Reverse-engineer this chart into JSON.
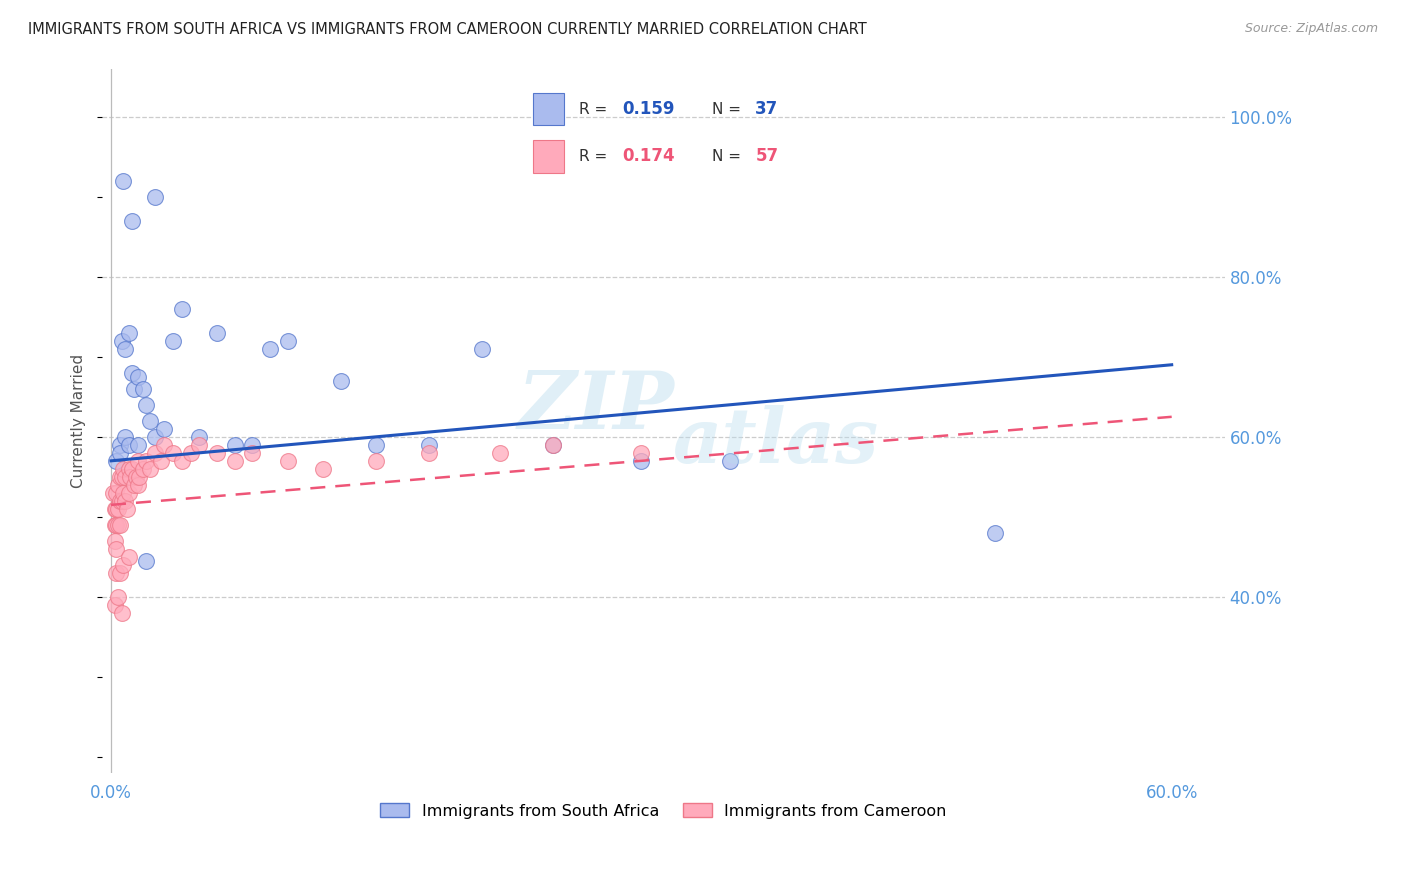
{
  "title": "IMMIGRANTS FROM SOUTH AFRICA VS IMMIGRANTS FROM CAMEROON CURRENTLY MARRIED CORRELATION CHART",
  "source": "Source: ZipAtlas.com",
  "ylabel": "Currently Married",
  "legend_r1": "R = 0.159",
  "legend_n1": "N = 37",
  "legend_r2": "R = 0.174",
  "legend_n2": "N = 57",
  "color_blue_fill": "#AABBEE",
  "color_blue_edge": "#5577CC",
  "color_pink_fill": "#FFAABB",
  "color_pink_edge": "#EE7788",
  "color_blue_line": "#2255BB",
  "color_pink_line": "#EE5577",
  "color_tick_label": "#5599DD",
  "color_grid": "#CCCCCC",
  "color_ylabel": "#555555",
  "color_title": "#222222",
  "color_source": "#999999",
  "color_watermark": "#BBDDEE",
  "xlim_min": -0.005,
  "xlim_max": 0.63,
  "ylim_min": 0.18,
  "ylim_max": 1.06,
  "x_ticks": [
    0.0,
    0.1,
    0.2,
    0.3,
    0.4,
    0.5,
    0.6
  ],
  "x_tick_labels": [
    "0.0%",
    "",
    "",
    "",
    "",
    "",
    "60.0%"
  ],
  "y_ticks_right": [
    0.4,
    0.6,
    0.8,
    1.0
  ],
  "y_tick_labels_right": [
    "40.0%",
    "60.0%",
    "80.0%",
    "100.0%"
  ],
  "sa_line_y0": 0.57,
  "sa_line_y1": 0.69,
  "cam_line_y0": 0.515,
  "cam_line_y1": 0.625,
  "sa_x": [
    0.003,
    0.005,
    0.006,
    0.008,
    0.01,
    0.012,
    0.013,
    0.015,
    0.018,
    0.02,
    0.022,
    0.025,
    0.03,
    0.035,
    0.04,
    0.05,
    0.06,
    0.07,
    0.08,
    0.09,
    0.1,
    0.13,
    0.15,
    0.18,
    0.21,
    0.25,
    0.3,
    0.35,
    0.5,
    0.005,
    0.008,
    0.01,
    0.015,
    0.02,
    0.025,
    0.007,
    0.012
  ],
  "sa_y": [
    0.57,
    0.59,
    0.72,
    0.71,
    0.73,
    0.68,
    0.66,
    0.675,
    0.66,
    0.64,
    0.62,
    0.6,
    0.61,
    0.72,
    0.76,
    0.6,
    0.73,
    0.59,
    0.59,
    0.71,
    0.72,
    0.67,
    0.59,
    0.59,
    0.71,
    0.59,
    0.57,
    0.57,
    0.48,
    0.58,
    0.6,
    0.59,
    0.59,
    0.445,
    0.9,
    0.92,
    0.87
  ],
  "cam_x": [
    0.001,
    0.002,
    0.002,
    0.002,
    0.003,
    0.003,
    0.003,
    0.003,
    0.004,
    0.004,
    0.004,
    0.005,
    0.005,
    0.005,
    0.006,
    0.006,
    0.007,
    0.007,
    0.008,
    0.008,
    0.009,
    0.01,
    0.01,
    0.011,
    0.012,
    0.013,
    0.014,
    0.015,
    0.015,
    0.016,
    0.018,
    0.02,
    0.022,
    0.025,
    0.028,
    0.03,
    0.035,
    0.04,
    0.045,
    0.05,
    0.06,
    0.07,
    0.08,
    0.1,
    0.12,
    0.15,
    0.18,
    0.22,
    0.25,
    0.3,
    0.003,
    0.005,
    0.007,
    0.01,
    0.002,
    0.004,
    0.006
  ],
  "cam_y": [
    0.53,
    0.51,
    0.49,
    0.47,
    0.53,
    0.51,
    0.49,
    0.46,
    0.54,
    0.51,
    0.49,
    0.55,
    0.52,
    0.49,
    0.55,
    0.52,
    0.56,
    0.53,
    0.55,
    0.52,
    0.51,
    0.56,
    0.53,
    0.55,
    0.56,
    0.54,
    0.55,
    0.57,
    0.54,
    0.55,
    0.56,
    0.57,
    0.56,
    0.58,
    0.57,
    0.59,
    0.58,
    0.57,
    0.58,
    0.59,
    0.58,
    0.57,
    0.58,
    0.57,
    0.56,
    0.57,
    0.58,
    0.58,
    0.59,
    0.58,
    0.43,
    0.43,
    0.44,
    0.45,
    0.39,
    0.4,
    0.38
  ]
}
